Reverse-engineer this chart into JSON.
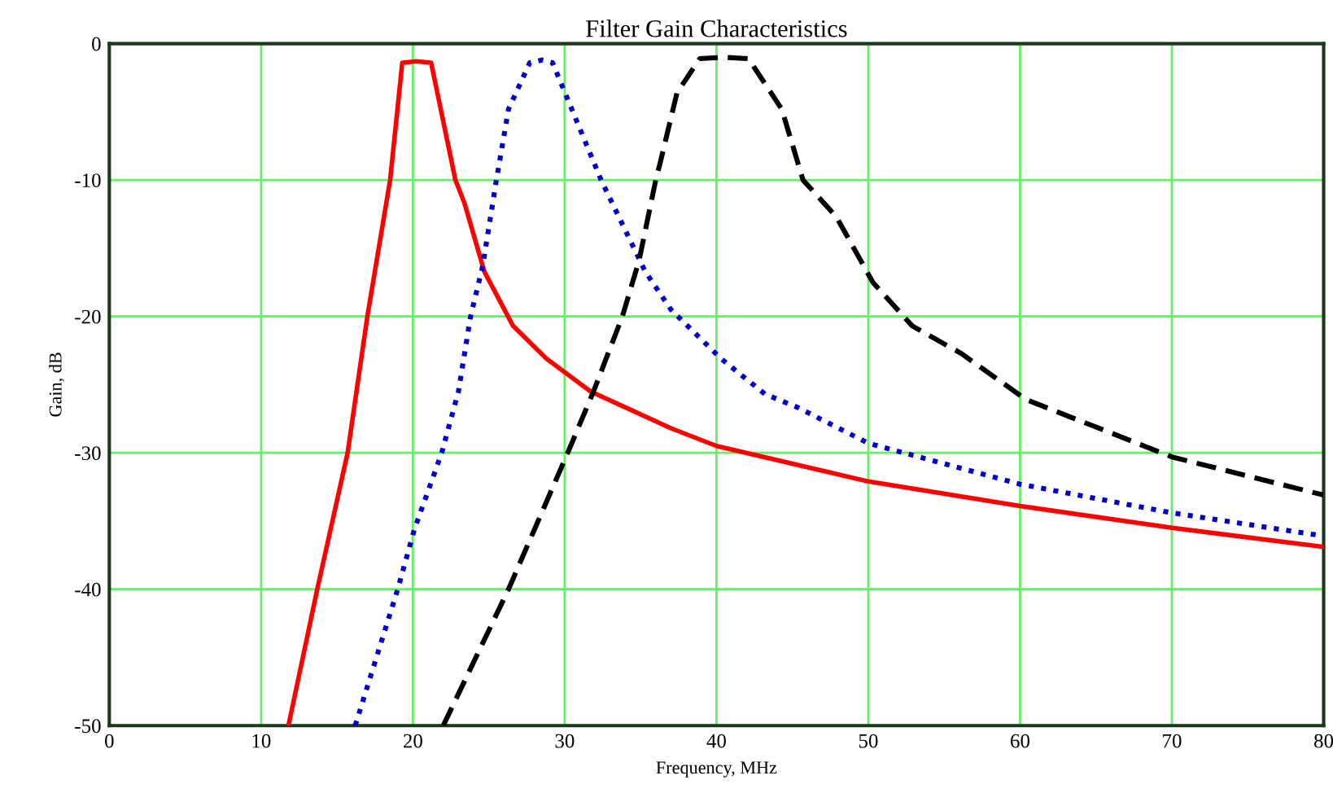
{
  "chart_data": {
    "type": "line",
    "title": "Filter Gain Characteristics",
    "xlabel": "Frequency, MHz",
    "ylabel": "Gain, dB",
    "xlim": [
      0,
      80
    ],
    "ylim": [
      -50,
      0
    ],
    "xticks": [
      0,
      10,
      20,
      30,
      40,
      50,
      60,
      70,
      80
    ],
    "yticks": [
      0,
      -10,
      -20,
      -30,
      -40,
      -50
    ],
    "grid": true,
    "marker": "none",
    "series": [
      {
        "color": "#ff0000",
        "line_style": "solid",
        "x": [
          11.8,
          13.7,
          15.7,
          17.0,
          18.5,
          19.3,
          20.2,
          21.2,
          22.8,
          23.4,
          24.7,
          26.6,
          28.8,
          31.7,
          37.0,
          40,
          50,
          60,
          70,
          80
        ],
        "values": [
          -50,
          -40,
          -30,
          -20,
          -10,
          -1.4,
          -1.3,
          -1.4,
          -10,
          -11.7,
          -16.7,
          -20.7,
          -23.1,
          -25.5,
          -28.2,
          -29.5,
          -32.1,
          -33.9,
          -35.5,
          -36.9
        ]
      },
      {
        "color": "#0000cc",
        "line_style": "dotted",
        "x": [
          16.2,
          19.0,
          20.1,
          21.9,
          23.0,
          23.8,
          24.6,
          25.5,
          26.3,
          27.7,
          28.5,
          29.2,
          32.4,
          35.3,
          37.0,
          40.3,
          43.2,
          45.4,
          50,
          60,
          70,
          80
        ],
        "values": [
          -50,
          -40,
          -35.6,
          -30,
          -25.5,
          -20,
          -16.3,
          -10,
          -4.8,
          -1.4,
          -1.2,
          -1.4,
          -10,
          -16.7,
          -19.5,
          -23.1,
          -25.7,
          -26.7,
          -29.3,
          -32.3,
          -34.4,
          -36.1
        ]
      },
      {
        "color": "#000000",
        "line_style": "dashed",
        "x": [
          22.0,
          26.3,
          30.2,
          31.9,
          33.8,
          34.9,
          36.0,
          36.3,
          37.4,
          38.9,
          40.5,
          42.1,
          44.3,
          45.7,
          47.9,
          50.3,
          52.9,
          56.1,
          60.4,
          70,
          80
        ],
        "values": [
          -50,
          -40,
          -30,
          -25.5,
          -20,
          -15.9,
          -10,
          -8.7,
          -3.6,
          -1.1,
          -1.0,
          -1.1,
          -4.8,
          -10,
          -12.7,
          -17.5,
          -20.7,
          -22.7,
          -26.1,
          -30.3,
          -33.1
        ]
      }
    ]
  }
}
